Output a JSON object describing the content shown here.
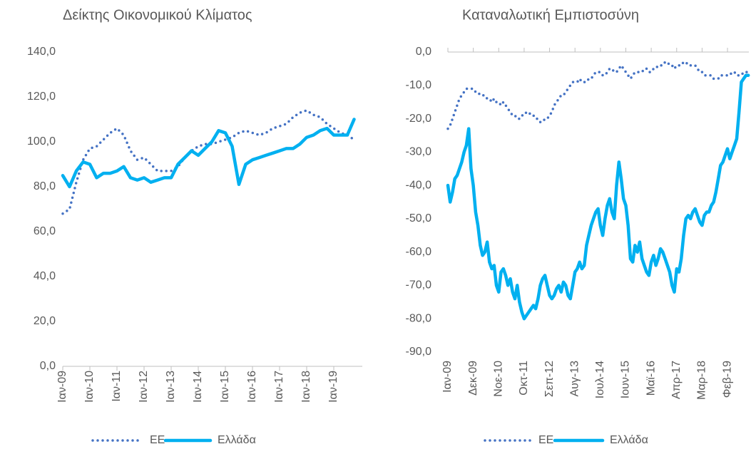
{
  "chart_data": [
    {
      "type": "line",
      "title": "Δείκτης Οικονομικού Κλίματος",
      "categories": [
        "Ιαν-09",
        null,
        null,
        null,
        "Ιαν-10",
        null,
        null,
        null,
        "Ιαν-11",
        null,
        null,
        null,
        "Ιαν-12",
        null,
        null,
        null,
        "Ιαν-13",
        null,
        null,
        null,
        "Ιαν-14",
        null,
        null,
        null,
        "Ιαν-15",
        null,
        null,
        null,
        "Ιαν-16",
        null,
        null,
        null,
        "Ιαν-17",
        null,
        null,
        null,
        "Ιαν-18",
        null,
        null,
        null,
        "Ιαν-19",
        null,
        null,
        null
      ],
      "series": [
        {
          "name": "ΕΕ",
          "color": "#4472c4",
          "style": "dotted",
          "values": [
            68,
            70,
            82,
            92,
            97,
            98,
            101,
            104,
            106,
            103,
            96,
            92,
            93,
            90,
            87,
            87,
            87,
            89,
            93,
            96,
            98,
            99,
            99,
            100,
            101,
            102,
            104,
            105,
            104,
            103,
            104,
            106,
            107,
            108,
            111,
            113,
            114,
            112,
            111,
            108,
            106,
            104,
            103,
            101
          ]
        },
        {
          "name": "Ελλάδα",
          "color": "#00b0f0",
          "style": "solid",
          "values": [
            85,
            80,
            87,
            91,
            90,
            84,
            86,
            86,
            87,
            89,
            84,
            83,
            84,
            82,
            83,
            84,
            84,
            90,
            93,
            96,
            94,
            97,
            100,
            105,
            104,
            98,
            81,
            90,
            92,
            93,
            94,
            95,
            96,
            97,
            97,
            99,
            102,
            103,
            105,
            106,
            103,
            103,
            103,
            110
          ]
        }
      ],
      "ylim": [
        0,
        140
      ],
      "yticks": [
        {
          "value": 0,
          "label": "0,0"
        },
        {
          "value": 20,
          "label": "20,0"
        },
        {
          "value": 40,
          "label": "40,0"
        },
        {
          "value": 60,
          "label": "60,0"
        },
        {
          "value": 80,
          "label": "80,0"
        },
        {
          "value": 100,
          "label": "100,0"
        },
        {
          "value": 120,
          "label": "120,0"
        },
        {
          "value": 140,
          "label": "140,0"
        }
      ],
      "legend": "bottom"
    },
    {
      "type": "line",
      "title": "Καταναλωτική Εμπιστοσύνη",
      "categories": [
        "Ιαν-09",
        null,
        null,
        null,
        null,
        null,
        null,
        null,
        null,
        null,
        null,
        "Δεκ-09",
        null,
        null,
        null,
        null,
        null,
        null,
        null,
        null,
        null,
        null,
        "Νοε-10",
        null,
        null,
        null,
        null,
        null,
        null,
        null,
        null,
        null,
        null,
        "Οκτ-11",
        null,
        null,
        null,
        null,
        null,
        null,
        null,
        null,
        null,
        null,
        "Σεπ-12",
        null,
        null,
        null,
        null,
        null,
        null,
        null,
        null,
        null,
        null,
        "Αυγ-13",
        null,
        null,
        null,
        null,
        null,
        null,
        null,
        null,
        null,
        null,
        "Ιουλ-14",
        null,
        null,
        null,
        null,
        null,
        null,
        null,
        null,
        null,
        null,
        "Ιουν-15",
        null,
        null,
        null,
        null,
        null,
        null,
        null,
        null,
        null,
        null,
        "Μαϊ-16",
        null,
        null,
        null,
        null,
        null,
        null,
        null,
        null,
        null,
        null,
        "Απρ-17",
        null,
        null,
        null,
        null,
        null,
        null,
        null,
        null,
        null,
        null,
        "Μαρ-18",
        null,
        null,
        null,
        null,
        null,
        null,
        null,
        null,
        null,
        null,
        "Φεβ-19",
        null,
        null,
        null,
        null,
        null,
        null,
        null,
        null,
        null
      ],
      "series": [
        {
          "name": "ΕΕ",
          "color": "#4472c4",
          "style": "dotted",
          "values": [
            -23,
            -22,
            -20,
            -18,
            -16,
            -14,
            -13,
            -12,
            -11,
            -11,
            -11,
            -11,
            -12,
            -12,
            -13,
            -13,
            -13,
            -14,
            -14,
            -15,
            -14,
            -15,
            -15,
            -16,
            -15,
            -16,
            -17,
            -18,
            -19,
            -19,
            -20,
            -20,
            -19,
            -19,
            -18,
            -18,
            -19,
            -19,
            -20,
            -20,
            -21,
            -21,
            -20,
            -20,
            -19,
            -18,
            -16,
            -15,
            -14,
            -13,
            -13,
            -12,
            -11,
            -10,
            -9,
            -9,
            -9,
            -8,
            -9,
            -9,
            -9,
            -8,
            -8,
            -7,
            -6,
            -6,
            -6,
            -7,
            -7,
            -6,
            -5,
            -5,
            -6,
            -6,
            -5,
            -4,
            -5,
            -6,
            -7,
            -8,
            -7,
            -6,
            -6,
            -6,
            -6,
            -5,
            -5,
            -6,
            -6,
            -5,
            -5,
            -4,
            -4,
            -4,
            -3,
            -3,
            -4,
            -4,
            -5,
            -4,
            -4,
            -4,
            -3,
            -3,
            -4,
            -4,
            -4,
            -4,
            -5,
            -6,
            -6,
            -7,
            -7,
            -7,
            -7,
            -8,
            -8,
            -8,
            -7,
            -7,
            -7,
            -7,
            -7,
            -6,
            -6,
            -7,
            -7,
            -7,
            -6,
            -6,
            -6
          ]
        },
        {
          "name": "Ελλάδα",
          "color": "#00b0f0",
          "style": "solid",
          "values": [
            -40,
            -45,
            -42,
            -38,
            -37,
            -35,
            -33,
            -30,
            -28,
            -23,
            -35,
            -40,
            -48,
            -52,
            -58,
            -61,
            -60,
            -57,
            -63,
            -65,
            -64,
            -70,
            -72,
            -66,
            -65,
            -67,
            -70,
            -68,
            -72,
            -74,
            -70,
            -75,
            -78,
            -80,
            -79,
            -78,
            -77,
            -76,
            -77,
            -74,
            -70,
            -68,
            -67,
            -70,
            -73,
            -74,
            -73,
            -71,
            -70,
            -72,
            -69,
            -70,
            -73,
            -74,
            -70,
            -66,
            -65,
            -63,
            -65,
            -64,
            -58,
            -55,
            -52,
            -50,
            -48,
            -47,
            -52,
            -55,
            -50,
            -46,
            -44,
            -48,
            -50,
            -40,
            -33,
            -38,
            -44,
            -46,
            -52,
            -62,
            -63,
            -58,
            -60,
            -57,
            -62,
            -64,
            -66,
            -67,
            -63,
            -61,
            -64,
            -62,
            -59,
            -60,
            -62,
            -64,
            -66,
            -70,
            -72,
            -65,
            -66,
            -62,
            -55,
            -50,
            -49,
            -50,
            -48,
            -47,
            -49,
            -51,
            -52,
            -49,
            -48,
            -48,
            -46,
            -45,
            -42,
            -38,
            -34,
            -33,
            -31,
            -29,
            -32,
            -30,
            -28,
            -26,
            -18,
            -9,
            -8,
            -7,
            -7
          ]
        }
      ],
      "ylim": [
        -90,
        0
      ],
      "yticks": [
        {
          "value": -90,
          "label": "-90,0"
        },
        {
          "value": -80,
          "label": "-80,0"
        },
        {
          "value": -70,
          "label": "-70,0"
        },
        {
          "value": -60,
          "label": "-60,0"
        },
        {
          "value": -50,
          "label": "-50,0"
        },
        {
          "value": -40,
          "label": "-40,0"
        },
        {
          "value": -30,
          "label": "-30,0"
        },
        {
          "value": -20,
          "label": "-20,0"
        },
        {
          "value": -10,
          "label": "-10,0"
        },
        {
          "value": 0,
          "label": "0,0"
        }
      ],
      "legend": "bottom"
    }
  ]
}
